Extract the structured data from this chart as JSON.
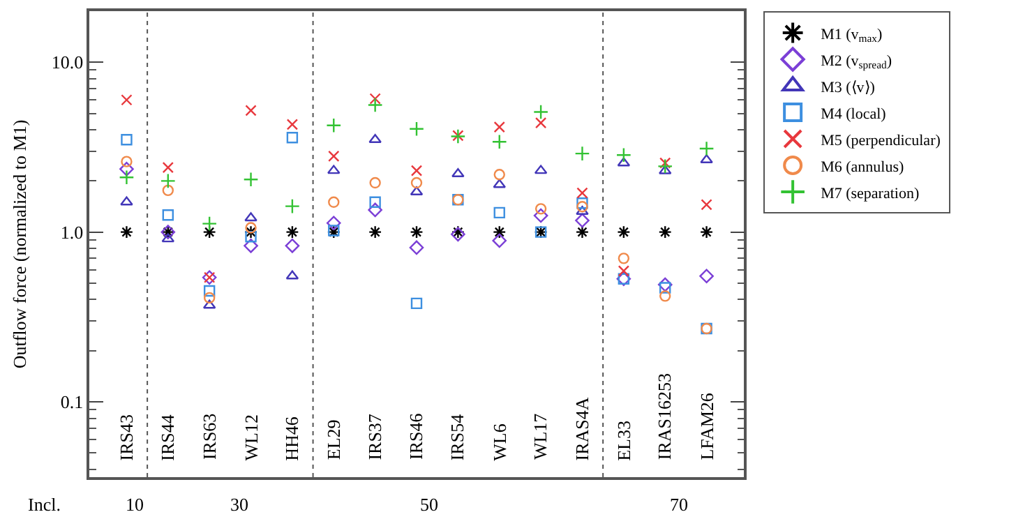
{
  "chart_data": {
    "type": "scatter",
    "ylabel": "Outflow force (normalized to M1)",
    "categories": [
      "IRS43",
      "IRS44",
      "IRS63",
      "WL12",
      "HH46",
      "EL29",
      "IRS37",
      "IRS46",
      "IRS54",
      "WL6",
      "WL17",
      "IRAS4A",
      "EL33",
      "IRAS16253",
      "LFAM26"
    ],
    "series": [
      {
        "name": "M1 (v$_{max}$)",
        "color": "#000000",
        "values": [
          1,
          1,
          1,
          1,
          1,
          1,
          1,
          1,
          1,
          1,
          1,
          1,
          1,
          1,
          1
        ]
      },
      {
        "name": "M2 (v$_{spread}$)",
        "color": "#7b3fd6",
        "marker": "diamond",
        "values": [
          2.35,
          1.0,
          0.54,
          0.83,
          0.83,
          1.13,
          1.35,
          0.81,
          0.97,
          0.89,
          1.25,
          1.17,
          0.53,
          0.49,
          0.55
        ]
      },
      {
        "name": "M3 (⟨v⟩)",
        "color": "#4236b8",
        "marker": "triangle",
        "values": [
          1.5,
          0.91,
          0.37,
          1.21,
          0.55,
          2.3,
          3.5,
          1.72,
          2.2,
          1.9,
          2.3,
          1.32,
          2.55,
          2.29,
          2.66
        ]
      },
      {
        "name": "M4 (local)",
        "color": "#3d8fe0",
        "marker": "square",
        "values": [
          3.5,
          1.26,
          0.45,
          0.94,
          3.6,
          1.02,
          1.5,
          0.38,
          1.55,
          1.3,
          1.0,
          1.48,
          0.53,
          0.47,
          0.27
        ]
      },
      {
        "name": "M5 (perpendicular)",
        "color": "#e8383d",
        "marker": "x",
        "values": [
          6.0,
          2.4,
          0.54,
          5.2,
          4.3,
          2.8,
          6.1,
          2.3,
          3.7,
          4.15,
          4.4,
          1.7,
          0.59,
          2.55,
          1.45
        ]
      },
      {
        "name": "M6 (annulus)",
        "color": "#f08a4b",
        "marker": "circle",
        "values": [
          2.6,
          1.76,
          0.41,
          1.06,
          null,
          1.5,
          1.95,
          1.95,
          1.55,
          2.18,
          1.37,
          1.41,
          0.7,
          0.42,
          0.27
        ]
      },
      {
        "name": "M7 (separation)",
        "color": "#33c233",
        "marker": "plus",
        "values": [
          2.1,
          2.0,
          1.12,
          2.04,
          1.42,
          4.25,
          5.6,
          4.05,
          3.66,
          3.4,
          5.1,
          2.9,
          2.84,
          2.44,
          3.1
        ]
      }
    ],
    "log": "y",
    "ylim": [
      0.036,
      20
    ],
    "yticks": [
      0.1,
      {
        "value": 1,
        "label": "1.0"
      },
      {
        "value": 10,
        "label": "10.0"
      }
    ],
    "annotations": [
      "Incl.",
      "10",
      "30",
      "50",
      "70"
    ],
    "legend": "top right"
  }
}
